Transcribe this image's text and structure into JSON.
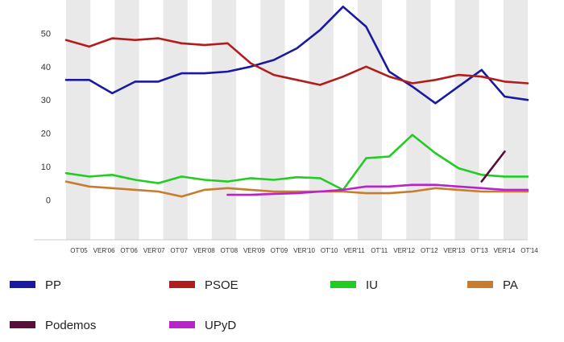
{
  "chart_data": {
    "type": "line",
    "title": "",
    "xlabel": "",
    "ylabel": "",
    "ylim": [
      -12,
      60
    ],
    "yticks": [
      0,
      10,
      20,
      30,
      40,
      50
    ],
    "grid": "alternating vertical bands",
    "legend_position": "bottom",
    "categories": [
      "OT'05",
      "VER'06",
      "OT'06",
      "VER'07",
      "OT'07",
      "VER'08",
      "OT'08",
      "VER'09",
      "OT'09",
      "VER'10",
      "OT'10",
      "VER'11",
      "OT'11",
      "VER'12",
      "OT'12",
      "VER'13",
      "OT'13",
      "VER'14",
      "OT'14"
    ],
    "x_range": [
      0,
      20
    ],
    "series": [
      {
        "name": "PP",
        "color": "#1a1aa0",
        "x": [
          0,
          1,
          2,
          3,
          4,
          5,
          6,
          7,
          8,
          9,
          10,
          11,
          12,
          13,
          14,
          15,
          16,
          17,
          18,
          19,
          20
        ],
        "values": [
          36,
          36,
          32,
          35.5,
          35.5,
          38,
          38,
          38.5,
          40,
          42,
          45.5,
          51,
          58,
          52,
          38.5,
          34,
          29,
          34,
          39,
          31,
          30
        ]
      },
      {
        "name": "PSOE",
        "color": "#b31c1c",
        "x": [
          0,
          1,
          2,
          3,
          4,
          5,
          6,
          7,
          8,
          9,
          10,
          11,
          12,
          13,
          14,
          15,
          16,
          17,
          18,
          19,
          20
        ],
        "values": [
          48,
          46,
          48.5,
          48,
          48.5,
          47,
          46.5,
          47,
          41,
          37.5,
          36,
          34.5,
          37,
          40,
          37,
          35,
          36,
          37.5,
          37,
          35.5,
          35
        ]
      },
      {
        "name": "IU",
        "color": "#22cc22",
        "x": [
          0,
          1,
          2,
          3,
          4,
          5,
          6,
          7,
          8,
          9,
          10,
          11,
          12,
          13,
          14,
          15,
          16,
          17,
          18,
          19,
          20
        ],
        "values": [
          8,
          7,
          7.5,
          6,
          5,
          7,
          6,
          5.5,
          6.5,
          6,
          6.8,
          6.5,
          3,
          12.5,
          13,
          19.5,
          14,
          9.5,
          7.5,
          7,
          7
        ]
      },
      {
        "name": "PA",
        "color": "#c87d2e",
        "x": [
          0,
          1,
          2,
          3,
          4,
          5,
          6,
          7,
          8,
          9,
          10,
          11,
          12,
          13,
          14,
          15,
          16,
          17,
          18,
          19,
          20
        ],
        "values": [
          5.5,
          4,
          3.5,
          3,
          2.5,
          1,
          3,
          3.5,
          3,
          2.5,
          2.5,
          2.5,
          2.5,
          2,
          2,
          2.5,
          3.5,
          3,
          2.5,
          2.5,
          2.5
        ]
      },
      {
        "name": "Podemos",
        "color": "#5a0f3a",
        "x": [
          18,
          19
        ],
        "values": [
          5.5,
          14.5
        ]
      },
      {
        "name": "UPyD",
        "color": "#bb22cc",
        "x": [
          7,
          8,
          9,
          10,
          11,
          12,
          13,
          14,
          15,
          16,
          17,
          18,
          19,
          20
        ],
        "values": [
          1.5,
          1.5,
          1.8,
          2,
          2.5,
          3,
          4,
          4,
          4.5,
          4.5,
          4,
          3.5,
          3,
          3
        ]
      }
    ]
  }
}
